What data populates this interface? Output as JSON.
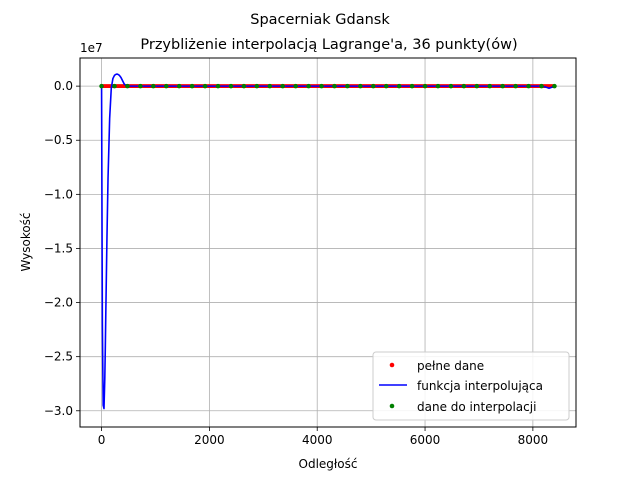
{
  "chart_data": {
    "type": "line",
    "title": "Spacerniak Gdansk",
    "subtitle": "Przybliżenie interpolacją Lagrange'a, 36 punkty(ów)",
    "xlabel": "Odległość",
    "ylabel": "Wysokość",
    "y_offset_label": "1e7",
    "xlim": [
      -400,
      8800
    ],
    "ylim": [
      -3.15,
      0.26
    ],
    "x_ticks": [
      0,
      2000,
      4000,
      6000,
      8000
    ],
    "x_tick_labels": [
      "0",
      "2000",
      "4000",
      "6000",
      "8000"
    ],
    "y_ticks": [
      0.0,
      -0.5,
      -1.0,
      -1.5,
      -2.0,
      -2.5,
      -3.0
    ],
    "y_tick_labels": [
      "0.0",
      "−0.5",
      "−1.0",
      "−1.5",
      "−2.0",
      "−2.5",
      "−3.0"
    ],
    "grid": true,
    "legend_position": "lower-right",
    "series": [
      {
        "name": "pełne dane",
        "kind": "points",
        "color": "#ff0000",
        "x_range": [
          0,
          8400
        ],
        "y_value": 0.0
      },
      {
        "name": "funkcja interpolująca",
        "kind": "line",
        "color": "#0000ff",
        "x": [
          0,
          15,
          30,
          45,
          60,
          70,
          80,
          100,
          120,
          150,
          180,
          210,
          240,
          270,
          300,
          330,
          360,
          390,
          420,
          450,
          500,
          600,
          8000,
          8180,
          8250,
          8300,
          8350,
          8400
        ],
        "y": [
          0.0,
          -2.2,
          -2.95,
          -2.98,
          -2.7,
          -2.4,
          -2.05,
          -1.4,
          -0.85,
          -0.3,
          -0.02,
          0.07,
          0.1,
          0.11,
          0.11,
          0.1,
          0.08,
          0.05,
          0.02,
          0.005,
          0.0,
          0.0,
          0.0,
          0.0,
          -0.01,
          -0.02,
          -0.01,
          0.0
        ]
      },
      {
        "name": "dane do interpolacji",
        "kind": "points",
        "color": "#008000",
        "x_range": [
          0,
          8400
        ],
        "count": 36,
        "y_value": 0.0
      }
    ]
  }
}
